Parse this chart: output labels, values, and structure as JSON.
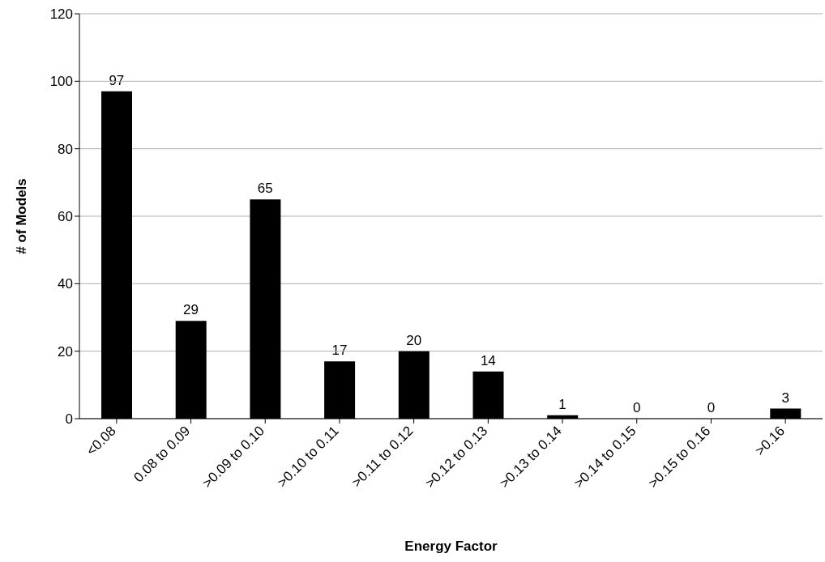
{
  "chart_data": {
    "type": "bar",
    "xlabel": "Energy Factor",
    "ylabel": "# of Models",
    "categories": [
      "<0.08",
      "0.08 to 0.09",
      ">0.09 to 0.10",
      ">0.10 to 0.11",
      ">0.11 to 0.12",
      ">0.12 to 0.13",
      ">0.13 to 0.14",
      ">0.14 to 0.15",
      ">0.15 to 0.16",
      ">0.16"
    ],
    "values": [
      97,
      29,
      65,
      17,
      20,
      14,
      1,
      0,
      0,
      3
    ],
    "color": "#000000",
    "ylim": [
      0,
      120
    ],
    "yticks": [
      0,
      20,
      40,
      60,
      80,
      100,
      120
    ],
    "grid": "y",
    "data_labels": true,
    "legend": false
  }
}
